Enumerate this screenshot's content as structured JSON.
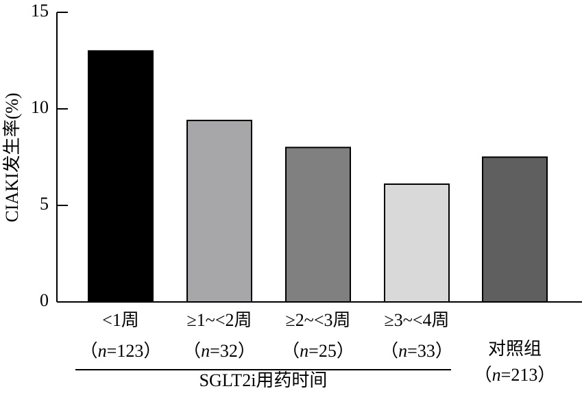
{
  "chart_data": {
    "type": "bar",
    "y_label": "CIAKI发生率(%)",
    "categories": [
      [
        "<1周",
        "（n=123）"
      ],
      [
        "≥1~<2周",
        "（n=32）"
      ],
      [
        "≥2~<3周",
        "（n=25）"
      ],
      [
        "≥3~<4周",
        "（n=33）"
      ],
      [
        "对照组",
        "（n=213）"
      ]
    ],
    "values": [
      13.0,
      9.4,
      8.0,
      6.1,
      7.5
    ],
    "colors": [
      "#000000",
      "#a7a7a9",
      "#808080",
      "#d9d9d9",
      "#5f5f5f"
    ],
    "group_label": "SGLT2i用药时间",
    "ylim": [
      0,
      15
    ],
    "yticks": [
      0,
      5,
      10,
      15
    ],
    "grid": false
  }
}
